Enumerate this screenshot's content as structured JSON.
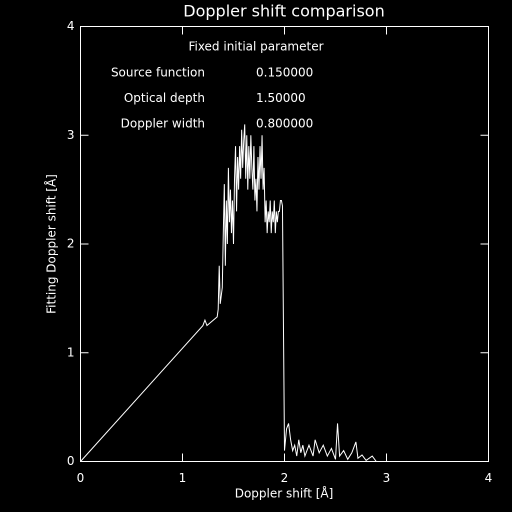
{
  "chart_data": {
    "type": "line",
    "title": "Doppler shift comparison",
    "x_label": "Doppler shift [Å]",
    "y_label": "Fitting Doppler shift [Å]",
    "annotation_title": "Fixed initial parameter",
    "parameters": [
      {
        "name": "Source function",
        "value": "0.150000"
      },
      {
        "name": "Optical depth",
        "value": "1.50000"
      },
      {
        "name": "Doppler width",
        "value": "0.800000"
      }
    ],
    "color": "#ffffff",
    "x": [
      0,
      1.2,
      1.22,
      1.24,
      1.34,
      1.35,
      1.36,
      1.37,
      1.39,
      1.4,
      1.41,
      1.42,
      1.43,
      1.44,
      1.45,
      1.46,
      1.47,
      1.48,
      1.49,
      1.5,
      1.51,
      1.52,
      1.53,
      1.54,
      1.55,
      1.56,
      1.57,
      1.58,
      1.59,
      1.6,
      1.61,
      1.62,
      1.63,
      1.64,
      1.65,
      1.66,
      1.67,
      1.68,
      1.69,
      1.7,
      1.71,
      1.72,
      1.73,
      1.74,
      1.75,
      1.76,
      1.77,
      1.78,
      1.79,
      1.8,
      1.81,
      1.82,
      1.83,
      1.84,
      1.85,
      1.86,
      1.87,
      1.88,
      1.89,
      1.9,
      1.91,
      1.92,
      1.93,
      1.94,
      1.95,
      1.96,
      1.97,
      1.98,
      2.0,
      2.02,
      2.04,
      2.06,
      2.08,
      2.1,
      2.12,
      2.14,
      2.16,
      2.18,
      2.2,
      2.24,
      2.28,
      2.3,
      2.34,
      2.38,
      2.42,
      2.46,
      2.5,
      2.52,
      2.54,
      2.58,
      2.62,
      2.66,
      2.7,
      2.72,
      2.76,
      2.8,
      2.86,
      2.9,
      3.1
    ],
    "values": [
      0,
      1.25,
      1.3,
      1.25,
      1.33,
      1.4,
      1.8,
      1.45,
      1.6,
      2.1,
      2.55,
      1.8,
      2.4,
      2.0,
      2.7,
      2.2,
      2.5,
      2.1,
      2.4,
      2.0,
      2.6,
      2.9,
      2.3,
      2.8,
      2.5,
      2.9,
      2.6,
      3.05,
      2.7,
      2.95,
      3.1,
      2.6,
      3.0,
      2.5,
      2.9,
      2.6,
      3.0,
      2.7,
      2.5,
      2.9,
      2.4,
      2.6,
      2.3,
      2.8,
      2.5,
      2.9,
      2.6,
      3.0,
      2.5,
      2.7,
      2.2,
      2.4,
      2.1,
      2.3,
      2.2,
      2.4,
      2.1,
      2.3,
      2.2,
      2.4,
      2.1,
      2.3,
      2.2,
      2.3,
      2.3,
      2.4,
      2.4,
      2.35,
      0.1,
      0.3,
      0.35,
      0.2,
      0.1,
      0.15,
      0.05,
      0.2,
      0.08,
      0.15,
      0.05,
      0.15,
      0.05,
      0.2,
      0.08,
      0.15,
      0.05,
      0.12,
      0.02,
      0.35,
      0.05,
      0.1,
      0.02,
      0.08,
      0.18,
      0.03,
      0.06,
      0.01,
      0.05,
      0,
      0
    ],
    "xlim": [
      0,
      4
    ],
    "xticks": [
      0,
      1,
      2,
      3,
      4
    ],
    "ylim": [
      0,
      4
    ],
    "yticks": [
      0,
      1,
      2,
      3,
      4
    ]
  }
}
